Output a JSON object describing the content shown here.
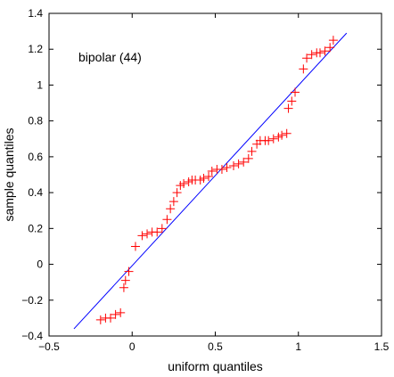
{
  "chart_data": {
    "type": "scatter",
    "title": "",
    "xlabel": "uniform quantiles",
    "ylabel": "sample quantiles",
    "annotation": "bipolar (44)",
    "xlim": [
      -0.5,
      1.5
    ],
    "ylim": [
      -0.4,
      1.4
    ],
    "xticks": [
      -0.5,
      0,
      0.5,
      1,
      1.5
    ],
    "xtick_labels": [
      "−0.5",
      "0",
      "0.5",
      "1",
      "1.5"
    ],
    "yticks": [
      -0.4,
      -0.2,
      0,
      0.2,
      0.4,
      0.6,
      0.8,
      1,
      1.2,
      1.4
    ],
    "ytick_labels": [
      "−0.4",
      "−0.2",
      "0",
      "0.2",
      "0.4",
      "0.6",
      "0.8",
      "1",
      "1.2",
      "1.4"
    ],
    "grid": false,
    "colors": {
      "points": "#ff0000",
      "line": "#0000ff",
      "axes": "#000000"
    },
    "series": [
      {
        "marker": "plus",
        "color": "#ff0000",
        "points": [
          [
            -0.19,
            -0.31
          ],
          [
            -0.16,
            -0.3
          ],
          [
            -0.13,
            -0.3
          ],
          [
            -0.1,
            -0.28
          ],
          [
            -0.07,
            -0.27
          ],
          [
            -0.05,
            -0.13
          ],
          [
            -0.04,
            -0.09
          ],
          [
            -0.02,
            -0.04
          ],
          [
            0.02,
            0.1
          ],
          [
            0.06,
            0.16
          ],
          [
            0.09,
            0.17
          ],
          [
            0.12,
            0.18
          ],
          [
            0.15,
            0.18
          ],
          [
            0.18,
            0.2
          ],
          [
            0.21,
            0.25
          ],
          [
            0.23,
            0.31
          ],
          [
            0.25,
            0.35
          ],
          [
            0.27,
            0.4
          ],
          [
            0.29,
            0.44
          ],
          [
            0.31,
            0.45
          ],
          [
            0.34,
            0.46
          ],
          [
            0.36,
            0.47
          ],
          [
            0.38,
            0.47
          ],
          [
            0.41,
            0.47
          ],
          [
            0.43,
            0.48
          ],
          [
            0.46,
            0.49
          ],
          [
            0.48,
            0.52
          ],
          [
            0.51,
            0.53
          ],
          [
            0.54,
            0.53
          ],
          [
            0.57,
            0.54
          ],
          [
            0.61,
            0.55
          ],
          [
            0.64,
            0.56
          ],
          [
            0.67,
            0.57
          ],
          [
            0.7,
            0.59
          ],
          [
            0.72,
            0.63
          ],
          [
            0.75,
            0.67
          ],
          [
            0.77,
            0.69
          ],
          [
            0.8,
            0.69
          ],
          [
            0.82,
            0.69
          ],
          [
            0.85,
            0.7
          ],
          [
            0.88,
            0.71
          ],
          [
            0.9,
            0.72
          ],
          [
            0.93,
            0.73
          ],
          [
            0.94,
            0.87
          ],
          [
            0.96,
            0.91
          ],
          [
            0.98,
            0.96
          ],
          [
            1.03,
            1.09
          ],
          [
            1.05,
            1.15
          ],
          [
            1.08,
            1.17
          ],
          [
            1.11,
            1.18
          ],
          [
            1.13,
            1.18
          ],
          [
            1.16,
            1.19
          ],
          [
            1.19,
            1.21
          ],
          [
            1.21,
            1.25
          ]
        ]
      }
    ],
    "reference_line": {
      "x1": -0.35,
      "y1": -0.36,
      "x2": 1.29,
      "y2": 1.29
    }
  }
}
